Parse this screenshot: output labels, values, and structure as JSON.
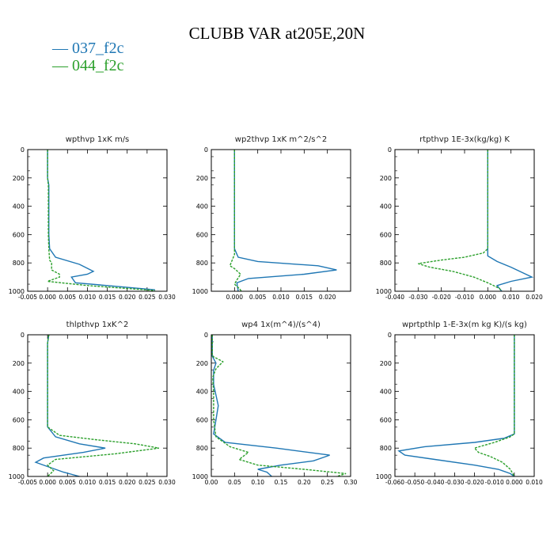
{
  "figure": {
    "title": "CLUBB VAR at205E,20N",
    "legend": [
      {
        "label": "037_f2c",
        "color": "#1f77b4",
        "dash": "solid"
      },
      {
        "label": "044_f2c",
        "color": "#2ca02c",
        "dash": "dashed"
      }
    ]
  },
  "chart_data": [
    {
      "type": "line",
      "title": "wpthvp  1xK m/s",
      "xlim": [
        -0.005,
        0.03
      ],
      "xticks": [
        "-0.005",
        "0.000",
        "0.005",
        "0.010",
        "0.015",
        "0.020",
        "0.025",
        "0.030"
      ],
      "xtick_values": [
        -0.005,
        0,
        0.005,
        0.01,
        0.015,
        0.02,
        0.025,
        0.03
      ],
      "ylim": [
        0,
        1000
      ],
      "y_inverted": true,
      "yticks": [
        "0",
        "200",
        "400",
        "600",
        "800",
        "1000"
      ],
      "series": [
        {
          "name": "037_f2c",
          "color": "#1f77b4",
          "dash": "solid",
          "points": [
            [
              0,
              0
            ],
            [
              0,
              200
            ],
            [
              0.0003,
              250
            ],
            [
              0.0003,
              600
            ],
            [
              0.0005,
              700
            ],
            [
              0.002,
              760
            ],
            [
              0.008,
              810
            ],
            [
              0.0115,
              860
            ],
            [
              0.01,
              880
            ],
            [
              0.006,
              900
            ],
            [
              0.007,
              940
            ],
            [
              0.015,
              960
            ],
            [
              0.027,
              990
            ]
          ]
        },
        {
          "name": "044_f2c",
          "color": "#2ca02c",
          "dash": "dashed",
          "points": [
            [
              0,
              0
            ],
            [
              0,
              200
            ],
            [
              0.0002,
              250
            ],
            [
              0.0002,
              600
            ],
            [
              0.0003,
              700
            ],
            [
              0.0005,
              780
            ],
            [
              0.001,
              800
            ],
            [
              0.001,
              850
            ],
            [
              0.003,
              880
            ],
            [
              0.003,
              900
            ],
            [
              0,
              930
            ],
            [
              0.01,
              960
            ],
            [
              0.027,
              995
            ]
          ]
        }
      ]
    },
    {
      "type": "line",
      "title": "wp2thvp  1xK m^2/s^2",
      "xlim": [
        -0.005,
        0.025
      ],
      "xticks": [
        "0.000",
        "0.005",
        "0.010",
        "0.015",
        "0.020"
      ],
      "xtick_values": [
        0,
        0.005,
        0.01,
        0.015,
        0.02
      ],
      "ylim": [
        0,
        1000
      ],
      "y_inverted": true,
      "yticks": [
        "0",
        "200",
        "400",
        "600",
        "800",
        "1000"
      ],
      "series": [
        {
          "name": "037_f2c",
          "color": "#1f77b4",
          "dash": "solid",
          "points": [
            [
              0,
              0
            ],
            [
              0,
              700
            ],
            [
              0.0008,
              760
            ],
            [
              0.005,
              790
            ],
            [
              0.018,
              820
            ],
            [
              0.022,
              850
            ],
            [
              0.015,
              880
            ],
            [
              0.003,
              910
            ],
            [
              0.0005,
              940
            ],
            [
              0.0008,
              1000
            ]
          ]
        },
        {
          "name": "044_f2c",
          "color": "#2ca02c",
          "dash": "dashed",
          "points": [
            [
              0,
              0
            ],
            [
              0,
              700
            ],
            [
              0,
              740
            ],
            [
              -0.0005,
              780
            ],
            [
              -0.001,
              820
            ],
            [
              0,
              840
            ],
            [
              0.0013,
              880
            ],
            [
              0.0005,
              920
            ],
            [
              0,
              950
            ],
            [
              0.001,
              980
            ],
            [
              0.0015,
              1000
            ]
          ]
        }
      ]
    },
    {
      "type": "line",
      "title": "rtpthvp  1E-3x(kg/kg) K",
      "xlim": [
        -0.04,
        0.02
      ],
      "xticks": [
        "-0.040",
        "-0.030",
        "-0.020",
        "-0.010",
        "0.000",
        "0.010",
        "0.020"
      ],
      "xtick_values": [
        -0.04,
        -0.03,
        -0.02,
        -0.01,
        0,
        0.01,
        0.02
      ],
      "ylim": [
        0,
        1000
      ],
      "y_inverted": true,
      "yticks": [
        "0",
        "200",
        "400",
        "600",
        "800",
        "1000"
      ],
      "series": [
        {
          "name": "037_f2c",
          "color": "#1f77b4",
          "dash": "solid",
          "points": [
            [
              0,
              0
            ],
            [
              0,
              700
            ],
            [
              0,
              750
            ],
            [
              0.004,
              790
            ],
            [
              0.01,
              830
            ],
            [
              0.019,
              900
            ],
            [
              0.01,
              930
            ],
            [
              0.004,
              960
            ],
            [
              0.006,
              1000
            ]
          ]
        },
        {
          "name": "044_f2c",
          "color": "#2ca02c",
          "dash": "dashed",
          "points": [
            [
              0,
              0
            ],
            [
              0,
              700
            ],
            [
              -0.002,
              730
            ],
            [
              -0.01,
              760
            ],
            [
              -0.02,
              780
            ],
            [
              -0.03,
              805
            ],
            [
              -0.025,
              830
            ],
            [
              -0.015,
              860
            ],
            [
              -0.006,
              900
            ],
            [
              0,
              940
            ],
            [
              0.005,
              980
            ],
            [
              0.006,
              1000
            ]
          ]
        }
      ]
    },
    {
      "type": "line",
      "title": "thlpthvp  1xK^2",
      "xlim": [
        -0.005,
        0.03
      ],
      "xticks": [
        "-0.005",
        "0.000",
        "0.005",
        "0.010",
        "0.015",
        "0.020",
        "0.025",
        "0.030"
      ],
      "xtick_values": [
        -0.005,
        0,
        0.005,
        0.01,
        0.015,
        0.02,
        0.025,
        0.03
      ],
      "ylim": [
        0,
        1000
      ],
      "y_inverted": true,
      "yticks": [
        "0",
        "200",
        "400",
        "600",
        "800",
        "1000"
      ],
      "series": [
        {
          "name": "037_f2c",
          "color": "#1f77b4",
          "dash": "solid",
          "points": [
            [
              0.0003,
              0
            ],
            [
              0,
              60
            ],
            [
              0,
              650
            ],
            [
              0.002,
              720
            ],
            [
              0.008,
              770
            ],
            [
              0.0145,
              800
            ],
            [
              0.009,
              830
            ],
            [
              -0.001,
              870
            ],
            [
              -0.003,
              900
            ],
            [
              0,
              930
            ],
            [
              0.004,
              970
            ],
            [
              0.008,
              1000
            ]
          ]
        },
        {
          "name": "044_f2c",
          "color": "#2ca02c",
          "dash": "dashed",
          "points": [
            [
              0.0003,
              0
            ],
            [
              0,
              60
            ],
            [
              0,
              650
            ],
            [
              0.003,
              710
            ],
            [
              0.012,
              740
            ],
            [
              0.022,
              770
            ],
            [
              0.028,
              800
            ],
            [
              0.017,
              840
            ],
            [
              0.002,
              880
            ],
            [
              0,
              920
            ],
            [
              0.0015,
              960
            ],
            [
              0,
              1000
            ]
          ]
        }
      ]
    },
    {
      "type": "line",
      "title": "wp4  1x(m^4)/(s^4)",
      "xlim": [
        0,
        0.3
      ],
      "xticks": [
        "0.00",
        "0.05",
        "0.10",
        "0.15",
        "0.20",
        "0.25",
        "0.30"
      ],
      "xtick_values": [
        0,
        0.05,
        0.1,
        0.15,
        0.2,
        0.25,
        0.3
      ],
      "ylim": [
        0,
        1000
      ],
      "y_inverted": true,
      "yticks": [
        "0",
        "200",
        "400",
        "600",
        "800",
        "1000"
      ],
      "series": [
        {
          "name": "037_f2c",
          "color": "#1f77b4",
          "dash": "solid",
          "points": [
            [
              0.002,
              0
            ],
            [
              0.002,
              150
            ],
            [
              0.01,
              200
            ],
            [
              0.005,
              250
            ],
            [
              0.005,
              350
            ],
            [
              0.015,
              500
            ],
            [
              0.01,
              600
            ],
            [
              0.005,
              700
            ],
            [
              0.03,
              760
            ],
            [
              0.14,
              800
            ],
            [
              0.255,
              850
            ],
            [
              0.22,
              890
            ],
            [
              0.15,
              920
            ],
            [
              0.1,
              950
            ],
            [
              0.12,
              970
            ],
            [
              0.13,
              1000
            ]
          ]
        },
        {
          "name": "044_f2c",
          "color": "#2ca02c",
          "dash": "dashed",
          "points": [
            [
              0.002,
              0
            ],
            [
              0.002,
              150
            ],
            [
              0.025,
              190
            ],
            [
              0.01,
              240
            ],
            [
              0.003,
              300
            ],
            [
              0.005,
              400
            ],
            [
              0.005,
              600
            ],
            [
              0.01,
              720
            ],
            [
              0.04,
              790
            ],
            [
              0.08,
              830
            ],
            [
              0.06,
              880
            ],
            [
              0.1,
              920
            ],
            [
              0.2,
              950
            ],
            [
              0.29,
              980
            ],
            [
              0.27,
              1000
            ]
          ]
        }
      ]
    },
    {
      "type": "line",
      "title": "wprtpthlp  1-E-3x(m kg K)/(s kg)",
      "xlim": [
        -0.06,
        0.01
      ],
      "xticks": [
        "-0.060",
        "-0.050",
        "-0.040",
        "-0.030",
        "-0.020",
        "-0.010",
        "0.000",
        "0.010"
      ],
      "xtick_values": [
        -0.06,
        -0.05,
        -0.04,
        -0.03,
        -0.02,
        -0.01,
        0,
        0.01
      ],
      "ylim": [
        0,
        1000
      ],
      "y_inverted": true,
      "yticks": [
        "0",
        "200",
        "400",
        "600",
        "800",
        "1000"
      ],
      "series": [
        {
          "name": "037_f2c",
          "color": "#1f77b4",
          "dash": "solid",
          "points": [
            [
              0,
              0
            ],
            [
              0,
              700
            ],
            [
              -0.005,
              730
            ],
            [
              -0.02,
              760
            ],
            [
              -0.045,
              790
            ],
            [
              -0.058,
              820
            ],
            [
              -0.055,
              850
            ],
            [
              -0.04,
              880
            ],
            [
              -0.02,
              920
            ],
            [
              -0.008,
              950
            ],
            [
              -0.002,
              980
            ],
            [
              0,
              1000
            ]
          ]
        },
        {
          "name": "044_f2c",
          "color": "#2ca02c",
          "dash": "dashed",
          "points": [
            [
              0,
              0
            ],
            [
              0,
              700
            ],
            [
              -0.002,
              720
            ],
            [
              -0.01,
              760
            ],
            [
              -0.02,
              800
            ],
            [
              -0.018,
              830
            ],
            [
              -0.012,
              860
            ],
            [
              -0.006,
              900
            ],
            [
              -0.002,
              950
            ],
            [
              0,
              1000
            ]
          ]
        }
      ]
    }
  ]
}
